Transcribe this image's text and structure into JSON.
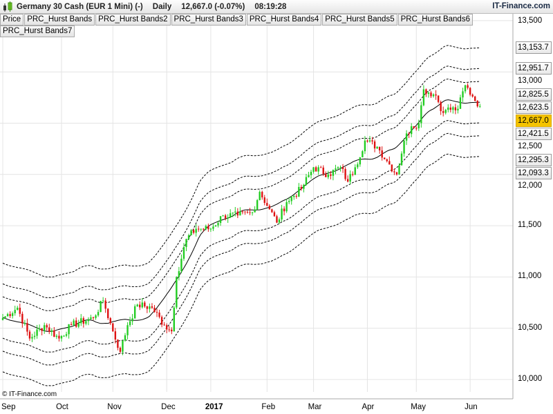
{
  "header": {
    "instrument": "Germany 30 Cash (EUR 1 Mini) (-)",
    "period": "Daily",
    "price": "12,667.0 (-0.07%)",
    "time": "08:19:28",
    "brand": "IT-Finance.com"
  },
  "tabs": [
    "Price",
    "PRC_Hurst Bands",
    "PRC_Hurst Bands2",
    "PRC_Hurst Bands3",
    "PRC_Hurst Bands4",
    "PRC_Hurst Bands5",
    "PRC_Hurst Bands6",
    "PRC_Hurst Bands7"
  ],
  "copyright": "© IT-Finance.com",
  "colors": {
    "up": "#22cc22",
    "down": "#dd1111",
    "current": "#f5c400"
  },
  "chart_data": {
    "type": "candlestick",
    "title": "Germany 30 Cash (EUR 1 Mini) Daily",
    "ylim": [
      10000,
      13500
    ],
    "y_ticks": [
      "13,500",
      "13,000",
      "12,500",
      "12,000",
      "11,500",
      "11,000",
      "10,500",
      "10,000"
    ],
    "y_tick_values": [
      13500,
      13000,
      12500,
      12000,
      11500,
      11000,
      10500,
      10000
    ],
    "x_ticks": [
      "Sep",
      "Oct",
      "Nov",
      "Dec",
      "2017",
      "Feb",
      "Mar",
      "Apr",
      "May",
      "Jun"
    ],
    "x_tick_days": [
      0,
      24,
      45,
      67,
      85,
      108,
      127,
      149,
      169,
      191
    ],
    "close_anchors_day": [
      0,
      6,
      11,
      17,
      23,
      28,
      37,
      41,
      45,
      48,
      51,
      55,
      61,
      66,
      69,
      71,
      75,
      79,
      85,
      90,
      96,
      102,
      105,
      109,
      112,
      116,
      122,
      127,
      133,
      138,
      141,
      144,
      148,
      153,
      157,
      161,
      164,
      167,
      170,
      172,
      177,
      180,
      181,
      186,
      189,
      192,
      195
    ],
    "close_anchors": [
      10600,
      10700,
      10400,
      10530,
      10400,
      10530,
      10600,
      10770,
      10470,
      10270,
      10530,
      10730,
      10700,
      10530,
      10470,
      11000,
      11370,
      11470,
      11470,
      11600,
      11600,
      11630,
      11830,
      11660,
      11530,
      11730,
      11860,
      12070,
      12000,
      12070,
      11930,
      12070,
      12330,
      12270,
      12130,
      12000,
      12330,
      12470,
      12500,
      12830,
      12770,
      12600,
      12630,
      12640,
      12870,
      12760,
      12667
    ],
    "band_offsets": [
      530,
      328,
      202,
      -202,
      -328,
      -530
    ],
    "band_last_labels": [
      "13,153.7",
      "12,951.7",
      "12,825.5",
      "12,421.5",
      "12,295.3",
      "12,093.3"
    ],
    "middle_last_label": "12,623.5",
    "current_price_label": "12,667.0"
  }
}
